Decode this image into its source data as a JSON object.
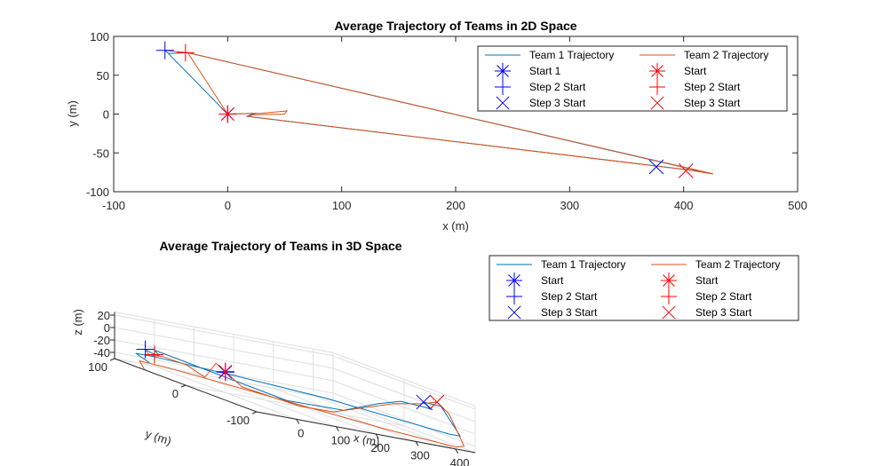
{
  "colors": {
    "team1": "#0072BD",
    "team2": "#D95319",
    "blue_marker": "#0000FF",
    "red_marker": "#FF0000",
    "axis": "#262626",
    "grid": "#DFDFDF"
  },
  "chart_data": [
    {
      "type": "line",
      "title": "Average Trajectory of Teams in 2D Space",
      "xlabel": "x (m)",
      "ylabel": "y (m)",
      "xlim": [
        -100,
        500
      ],
      "ylim": [
        -100,
        100
      ],
      "x_ticks": [
        -100,
        0,
        100,
        200,
        300,
        400,
        500
      ],
      "y_ticks": [
        -100,
        -50,
        0,
        50,
        100
      ],
      "x_tick_labels": [
        "-100",
        "0",
        "100",
        "200",
        "300",
        "400",
        "500"
      ],
      "y_tick_labels": [
        "-100",
        "-50",
        "0",
        "50",
        "100"
      ],
      "grid": false,
      "series": [
        {
          "name": "Team 1 Trajectory",
          "color_key": "team1",
          "points": [
            [
              -55,
              82
            ],
            [
              -52,
              78
            ],
            [
              -35,
              79
            ],
            [
              425,
              -77
            ],
            [
              405,
              -72
            ],
            [
              377,
              -67
            ],
            [
              17,
              -3
            ],
            [
              20,
              -1
            ],
            [
              25,
              1
            ],
            [
              0,
              0
            ],
            [
              -52,
              78
            ],
            [
              -55,
              82
            ]
          ]
        },
        {
          "name": "Team 2 Trajectory",
          "color_key": "team2",
          "points": [
            [
              -55,
              82
            ],
            [
              -35,
              79
            ],
            [
              426,
              -77
            ],
            [
              404,
              -72
            ],
            [
              376,
              -67
            ],
            [
              18,
              -3
            ],
            [
              22,
              -1
            ],
            [
              50,
              0
            ],
            [
              52,
              4
            ],
            [
              30,
              1
            ],
            [
              0,
              0
            ],
            [
              -35,
              79
            ]
          ]
        }
      ],
      "markers": [
        {
          "label": "Start 1",
          "style": "star",
          "color_key": "blue_marker",
          "x": 0,
          "y": 0
        },
        {
          "label": "Step 2 Start",
          "style": "plus",
          "color_key": "blue_marker",
          "x": -55,
          "y": 82
        },
        {
          "label": "Step 3 Start",
          "style": "cross",
          "color_key": "blue_marker",
          "x": 376,
          "y": -68
        },
        {
          "label": "Start",
          "style": "star",
          "color_key": "red_marker",
          "x": 0,
          "y": 0
        },
        {
          "label": "Step 2 Start",
          "style": "plus",
          "color_key": "red_marker",
          "x": -37,
          "y": 79
        },
        {
          "label": "Step 3 Start",
          "style": "cross",
          "color_key": "red_marker",
          "x": 402,
          "y": -73
        }
      ],
      "legend": {
        "placement": "top-right",
        "columns": 2,
        "entries": [
          {
            "label": "Team 1 Trajectory",
            "kind": "line",
            "color_key": "team1"
          },
          {
            "label": "Team 2 Trajectory",
            "kind": "line",
            "color_key": "team2"
          },
          {
            "label": "Start 1",
            "kind": "star",
            "color_key": "blue_marker"
          },
          {
            "label": "Start",
            "kind": "star",
            "color_key": "red_marker"
          },
          {
            "label": "Step 2 Start",
            "kind": "plus",
            "color_key": "blue_marker"
          },
          {
            "label": "Step 2 Start",
            "kind": "plus",
            "color_key": "red_marker"
          },
          {
            "label": "Step 3 Start",
            "kind": "cross",
            "color_key": "blue_marker"
          },
          {
            "label": "Step 3 Start",
            "kind": "cross",
            "color_key": "red_marker"
          }
        ]
      }
    },
    {
      "type": "line",
      "title": "Average Trajectory of Teams in 3D Space",
      "xlabel": "x (m)",
      "ylabel": "y (m)",
      "zlabel": "z (m)",
      "xlim": [
        -100,
        450
      ],
      "ylim": [
        -100,
        100
      ],
      "zlim": [
        -50,
        25
      ],
      "x_ticks": [
        0,
        100,
        200,
        300,
        400
      ],
      "y_ticks": [
        -100,
        0,
        100
      ],
      "z_ticks": [
        -40,
        -20,
        0,
        20
      ],
      "x_tick_labels": [
        "0",
        "100",
        "200",
        "300",
        "400"
      ],
      "y_tick_labels": [
        "-100",
        "0",
        "100"
      ],
      "z_tick_labels": [
        "-40",
        "-20",
        "0",
        "20"
      ],
      "grid": true,
      "series": [
        {
          "name": "Team 1 Trajectory",
          "color_key": "team1",
          "points": [
            [
              -55,
              82,
              -22
            ],
            [
              -40,
              82,
              -26
            ],
            [
              -20,
              82,
              -28
            ],
            [
              -37,
              79,
              -20
            ],
            [
              -20,
              60,
              -22
            ],
            [
              40,
              20,
              -30
            ],
            [
              120,
              -20,
              -40
            ],
            [
              190,
              -60,
              -30
            ],
            [
              240,
              -80,
              -5
            ],
            [
              280,
              -90,
              8
            ],
            [
              330,
              -95,
              7
            ],
            [
              360,
              -90,
              4
            ],
            [
              377,
              -68,
              9
            ],
            [
              400,
              -80,
              10
            ],
            [
              430,
              -90,
              -30
            ],
            [
              425,
              -77,
              -33
            ],
            [
              300,
              30,
              -35
            ],
            [
              150,
              70,
              -35
            ],
            [
              -10,
              95,
              -34
            ],
            [
              -55,
              95,
              -34
            ],
            [
              -48,
              80,
              -42
            ]
          ]
        },
        {
          "name": "Team 2 Trajectory",
          "color_key": "team2",
          "points": [
            [
              -55,
              82,
              -22
            ],
            [
              -45,
              82,
              -30
            ],
            [
              -15,
              80,
              -28
            ],
            [
              10,
              60,
              -30
            ],
            [
              20,
              40,
              -40
            ],
            [
              30,
              30,
              -12
            ],
            [
              60,
              10,
              -38
            ],
            [
              150,
              -20,
              -45
            ],
            [
              200,
              -40,
              -40
            ],
            [
              240,
              -60,
              -20
            ],
            [
              280,
              -80,
              0
            ],
            [
              330,
              -90,
              10
            ],
            [
              402,
              -73,
              14
            ],
            [
              420,
              -80,
              0
            ],
            [
              440,
              -90,
              -45
            ],
            [
              420,
              -90,
              -49
            ],
            [
              300,
              -60,
              -48
            ],
            [
              150,
              10,
              -46
            ],
            [
              -10,
              80,
              -44
            ],
            [
              -55,
              90,
              -44
            ],
            [
              -52,
              85,
              -55
            ]
          ]
        }
      ],
      "markers": [
        {
          "label": "Start",
          "style": "star",
          "color_key": "blue_marker",
          "x": 0,
          "y": 0,
          "z": -17
        },
        {
          "label": "Step 2 Start",
          "style": "plus",
          "color_key": "blue_marker",
          "x": -55,
          "y": 82,
          "z": -22
        },
        {
          "label": "Step 3 Start",
          "style": "cross",
          "color_key": "blue_marker",
          "x": 377,
          "y": -68,
          "z": 9
        },
        {
          "label": "Start",
          "style": "star",
          "color_key": "red_marker",
          "x": 0,
          "y": 0,
          "z": -16
        },
        {
          "label": "Step 2 Start",
          "style": "plus",
          "color_key": "red_marker",
          "x": -37,
          "y": 79,
          "z": -27
        },
        {
          "label": "Step 3 Start",
          "style": "cross",
          "color_key": "red_marker",
          "x": 402,
          "y": -73,
          "z": 14
        }
      ],
      "legend": {
        "placement": "right",
        "columns": 2,
        "entries": [
          {
            "label": "Team 1 Trajectory",
            "kind": "line",
            "color_key": "team1"
          },
          {
            "label": "Team 2 Trajectory",
            "kind": "line",
            "color_key": "team2"
          },
          {
            "label": "Start",
            "kind": "star",
            "color_key": "blue_marker"
          },
          {
            "label": "Start",
            "kind": "star",
            "color_key": "red_marker"
          },
          {
            "label": "Step 2 Start",
            "kind": "plus",
            "color_key": "blue_marker"
          },
          {
            "label": "Step 2 Start",
            "kind": "plus",
            "color_key": "red_marker"
          },
          {
            "label": "Step 3 Start",
            "kind": "cross",
            "color_key": "blue_marker"
          },
          {
            "label": "Step 3 Start",
            "kind": "cross",
            "color_key": "red_marker"
          }
        ]
      }
    }
  ]
}
